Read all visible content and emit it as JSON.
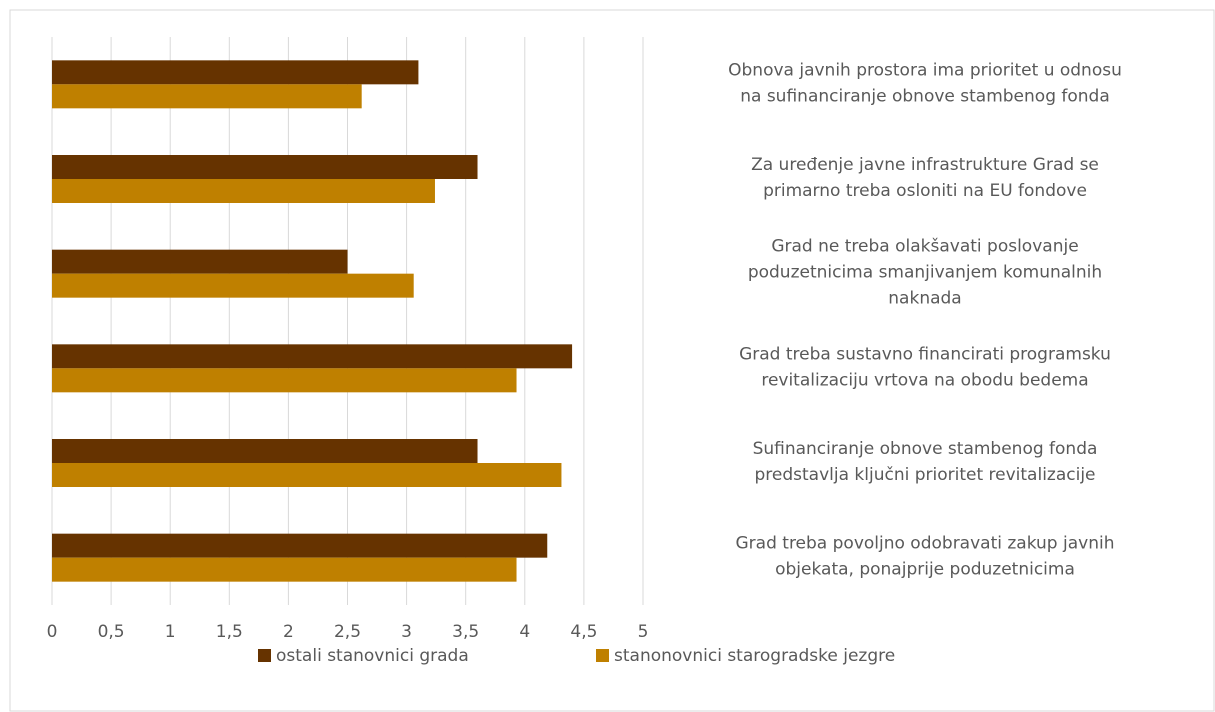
{
  "chart_data": {
    "type": "barh",
    "categories": [
      "Obnova javnih prostora ima prioritet u odnosu\nna sufinanciranje obnove stambenog fonda",
      "Za uređenje javne infrastrukture Grad se\nprimarno treba osloniti na EU fondove",
      "Grad ne treba olakšavati poslovanje\npoduzetnicima smanjivanjem komunalnih\nnaknada",
      "Grad treba sustavno financirati programsku\nrevitalizaciju vrtova na obodu bedema",
      "Sufinanciranje obnove stambenog fonda\npredstavlja ključni prioritet revitalizacije",
      "Grad treba povoljno odobravati zakup javnih\nobjekata, ponajprije poduzetnicima"
    ],
    "series": [
      {
        "name": "ostali stanovnici grada",
        "color": "#663300",
        "values": [
          3.1,
          3.6,
          2.5,
          4.4,
          3.6,
          4.19
        ]
      },
      {
        "name": "stanonovnici starogradske jezgre",
        "color": "#bf8000",
        "values": [
          2.62,
          3.24,
          3.06,
          3.93,
          4.31,
          3.93
        ]
      }
    ],
    "xlim": [
      0,
      5
    ],
    "xticks": [
      0,
      {
        "value": 0.5,
        "label": "0,5"
      },
      1,
      {
        "value": 1.5,
        "label": "1,5"
      },
      2,
      {
        "value": 2.5,
        "label": "2,5"
      },
      3,
      {
        "value": 3.5,
        "label": "3,5"
      },
      4,
      {
        "value": 4.5,
        "label": "4,5"
      },
      5
    ],
    "grid": true,
    "legend": "bottom"
  }
}
